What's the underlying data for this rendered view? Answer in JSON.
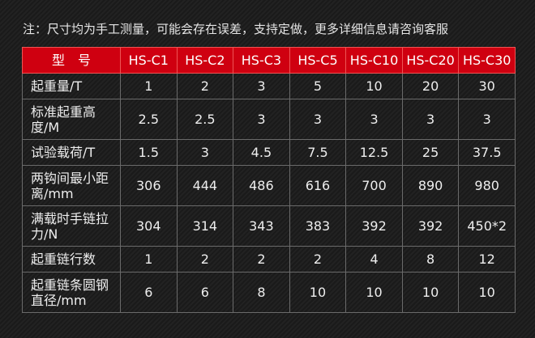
{
  "note": "注：尺寸均为手工测量，可能会存在误差，支持定做，更多详细信息请咨询客服",
  "header": {
    "label": "型　号",
    "models": [
      "HS-C1",
      "HS-C2",
      "HS-C3",
      "HS-C5",
      "HS-C10",
      "HS-C20",
      "HS-C30"
    ]
  },
  "rows": [
    {
      "label": "起重量/T",
      "values": [
        "1",
        "2",
        "3",
        "5",
        "10",
        "20",
        "30"
      ]
    },
    {
      "label": "标准起重高度/M",
      "values": [
        "2.5",
        "2.5",
        "3",
        "3",
        "3",
        "3",
        "3"
      ]
    },
    {
      "label": "试验载荷/T",
      "values": [
        "1.5",
        "3",
        "4.5",
        "7.5",
        "12.5",
        "25",
        "37.5"
      ]
    },
    {
      "label": "两钩间最小距离/mm",
      "values": [
        "306",
        "444",
        "486",
        "616",
        "700",
        "890",
        "980"
      ]
    },
    {
      "label": "满载时手链拉力/N",
      "values": [
        "304",
        "314",
        "343",
        "383",
        "392",
        "392",
        "450*2"
      ]
    },
    {
      "label": "起重链行数",
      "values": [
        "1",
        "2",
        "2",
        "2",
        "4",
        "8",
        "12"
      ]
    },
    {
      "label": "起重链条圆钢直径/mm",
      "values": [
        "6",
        "6",
        "8",
        "10",
        "10",
        "10",
        "10"
      ]
    }
  ],
  "colors": {
    "header_bg": "#cf0010",
    "background": "#1c1c1c"
  }
}
